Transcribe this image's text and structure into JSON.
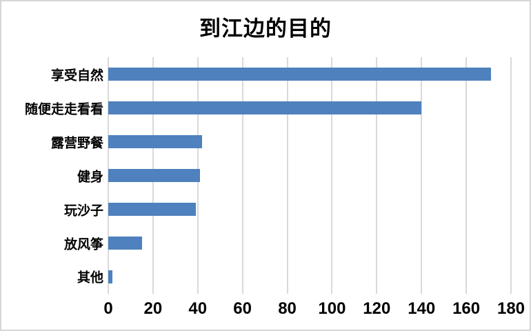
{
  "chart_data": {
    "type": "bar",
    "orientation": "horizontal",
    "title": "到江边的目的",
    "categories": [
      "享受自然",
      "随便走走看看",
      "露营野餐",
      "健身",
      "玩沙子",
      "放风筝",
      "其他"
    ],
    "values": [
      171,
      140,
      42,
      41,
      39,
      15,
      2
    ],
    "xlabel": "",
    "ylabel": "",
    "xlim": [
      0,
      180
    ],
    "xticks": [
      0,
      20,
      40,
      60,
      80,
      100,
      120,
      140,
      160,
      180
    ],
    "grid": "vertical-gridlines-on",
    "legend": "none",
    "colors": {
      "bar": "#4e81bd",
      "gridline": "#d9d9d9",
      "text": "#000000",
      "background": "#ffffff",
      "frame_border": "#d6d6d6"
    }
  }
}
